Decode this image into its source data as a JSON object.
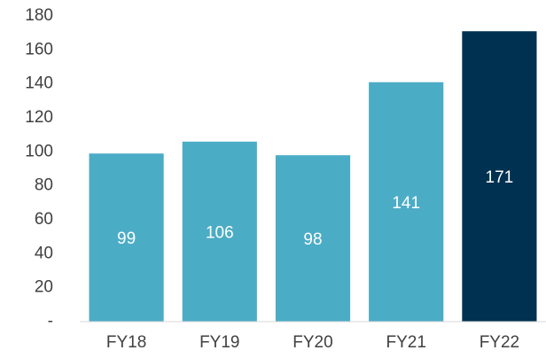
{
  "chart_data": {
    "type": "bar",
    "categories": [
      "FY18",
      "FY19",
      "FY20",
      "FY21",
      "FY22"
    ],
    "values": [
      99,
      106,
      98,
      141,
      171
    ],
    "colors": [
      "#4bacc6",
      "#4bacc6",
      "#4bacc6",
      "#4bacc6",
      "#003150"
    ],
    "ylim": [
      0,
      180
    ],
    "yticks": [
      {
        "value": 0,
        "label": "-"
      },
      20,
      40,
      60,
      80,
      100,
      120,
      140,
      160,
      180
    ],
    "grid": false
  }
}
